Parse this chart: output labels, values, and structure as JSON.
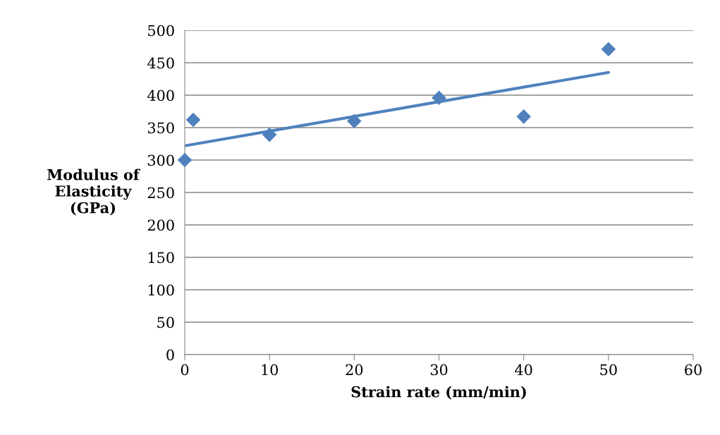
{
  "chart_data": {
    "type": "scatter",
    "xlabel": "Strain rate (mm/min)",
    "ylabel": "Modulus of\nElasticity\n(GPa)",
    "x": [
      0,
      1,
      10,
      20,
      30,
      40,
      50
    ],
    "series": [
      {
        "color": "#4f81bd",
        "values": [
          300,
          362,
          339,
          360,
          396,
          367,
          471
        ],
        "marker": "diamond"
      },
      {
        "type": "line",
        "color": "#4f81bd",
        "x": [
          0,
          50
        ],
        "values": [
          322,
          435
        ],
        "marker": "none",
        "line_style": "solid"
      }
    ],
    "xlim": [
      0,
      60
    ],
    "xticks": [
      0,
      10,
      20,
      30,
      40,
      50,
      60
    ],
    "ylim": [
      0,
      500
    ],
    "yticks": [
      0,
      50,
      100,
      150,
      200,
      250,
      300,
      350,
      400,
      450,
      500
    ],
    "grid": "y",
    "legend": false
  }
}
